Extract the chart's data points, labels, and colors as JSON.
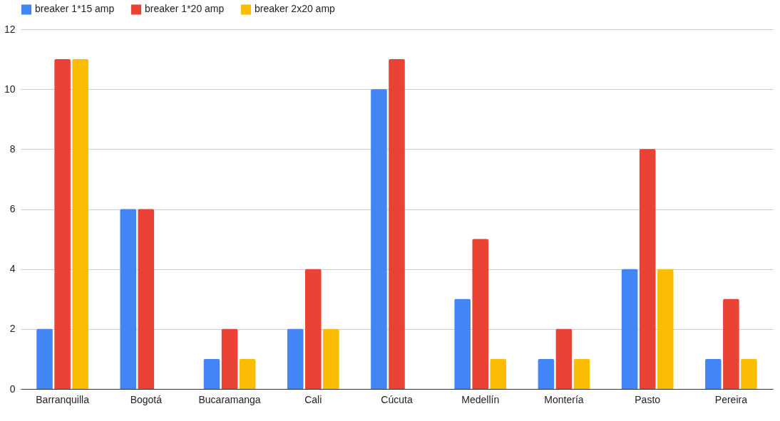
{
  "chart_data": {
    "type": "bar",
    "categories": [
      "Barranquilla",
      "Bogotá",
      "Bucaramanga",
      "Cali",
      "Cúcuta",
      "Medellín",
      "Montería",
      "Pasto",
      "Pereira"
    ],
    "series": [
      {
        "name": "breaker 1*15 amp",
        "color": "#4285f4",
        "values": [
          2,
          6,
          1,
          2,
          10,
          3,
          1,
          4,
          1
        ]
      },
      {
        "name": "breaker 1*20 amp",
        "color": "#ea4335",
        "values": [
          11,
          6,
          2,
          4,
          11,
          5,
          2,
          8,
          3
        ]
      },
      {
        "name": "breaker 2x20 amp",
        "color": "#fbbc04",
        "values": [
          11,
          0,
          1,
          2,
          0,
          1,
          1,
          4,
          1
        ]
      }
    ],
    "ylim": [
      0,
      12
    ],
    "yticks": [
      0,
      2,
      4,
      6,
      8,
      10,
      12
    ],
    "grid": "y",
    "legend": "top"
  }
}
